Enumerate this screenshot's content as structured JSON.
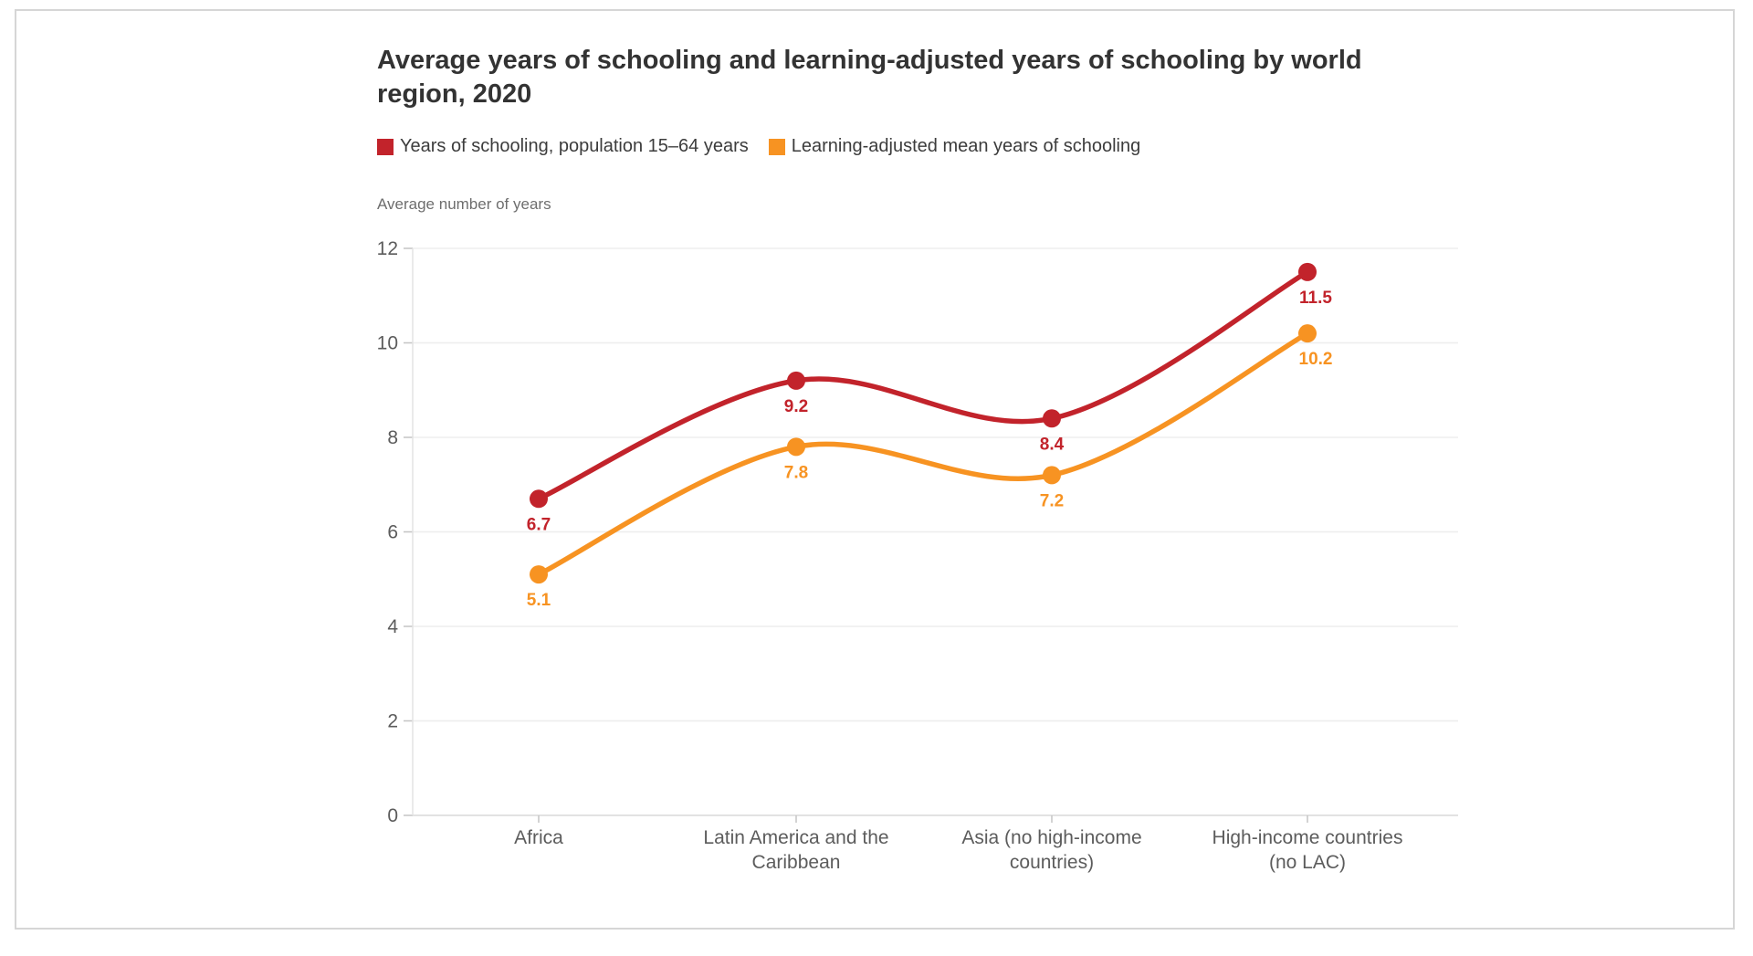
{
  "chart_data": {
    "type": "line",
    "title": "Average years of schooling and learning-adjusted years of schooling by world region, 2020",
    "axis_title": "Average number of years",
    "categories": [
      "Africa",
      "Latin America and the Caribbean",
      "Asia (no high-income countries)",
      "High-income countries (no LAC)"
    ],
    "category_lines": [
      [
        "Africa"
      ],
      [
        "Latin America and the",
        "Caribbean"
      ],
      [
        "Asia (no high-income",
        "countries)"
      ],
      [
        "High-income countries",
        "(no LAC)"
      ]
    ],
    "series": [
      {
        "name": "Years of schooling, population 15–64 years",
        "color": "#c2232b",
        "values": [
          6.7,
          9.2,
          8.4,
          11.5
        ]
      },
      {
        "name": "Learning-adjusted mean years of schooling",
        "color": "#f79322",
        "values": [
          5.1,
          7.8,
          7.2,
          10.2
        ]
      }
    ],
    "y_ticks": [
      0,
      2,
      4,
      6,
      8,
      10,
      12
    ],
    "ylim": [
      0,
      12
    ],
    "grid": true,
    "legend_position": "top",
    "colors": {
      "grid_line": "#ededed",
      "baseline": "#d9d9d9",
      "axis_line": "#e3e3e3",
      "tick_mark": "#c4c4c4",
      "tick_label": "#5c5c5c",
      "title_text": "#333333",
      "legend_text": "#3c3c3c"
    }
  }
}
